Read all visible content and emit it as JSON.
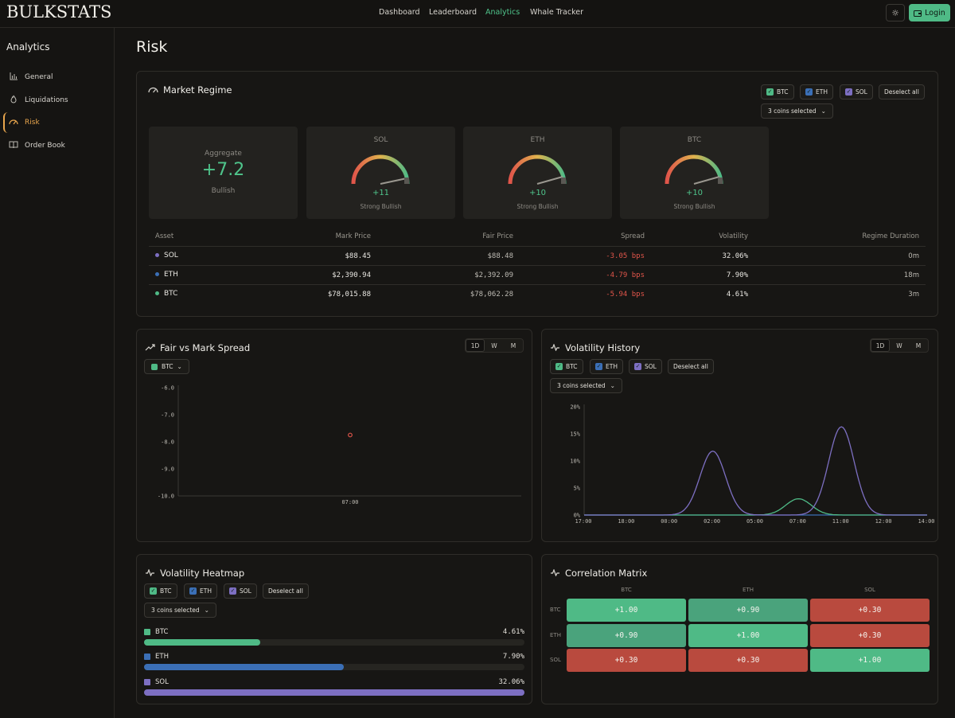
{
  "app": {
    "logo": "BULKSTATS"
  },
  "nav": {
    "items": [
      "Dashboard",
      "Leaderboard",
      "Analytics",
      "Whale Tracker"
    ],
    "active": "Analytics",
    "login_label": "Login"
  },
  "sidebar": {
    "title": "Analytics",
    "items": [
      {
        "label": "General",
        "icon": "bar-chart-icon"
      },
      {
        "label": "Liquidations",
        "icon": "flame-icon"
      },
      {
        "label": "Risk",
        "icon": "gauge-icon"
      },
      {
        "label": "Order Book",
        "icon": "book-icon"
      }
    ],
    "active": "Risk"
  },
  "page": {
    "title": "Risk"
  },
  "colors": {
    "btc": "#4fba86",
    "eth": "#3b6fb6",
    "sol": "#7d6fc2",
    "positive": "#4fc48b",
    "negative": "#e0554a",
    "accent": "#e9a64d"
  },
  "market_regime": {
    "title": "Market Regime",
    "chips": [
      "BTC",
      "ETH",
      "SOL"
    ],
    "deselect_label": "Deselect all",
    "selected_label": "3 coins selected",
    "aggregate": {
      "label": "Aggregate",
      "value": "+7.2",
      "status": "Bullish"
    },
    "gauges": [
      {
        "name": "SOL",
        "value": "+11",
        "status": "Strong Bullish",
        "score": 11
      },
      {
        "name": "ETH",
        "value": "+10",
        "status": "Strong Bullish",
        "score": 10
      },
      {
        "name": "BTC",
        "value": "+10",
        "status": "Strong Bullish",
        "score": 10
      }
    ],
    "table": {
      "headers": [
        "Asset",
        "Mark Price",
        "Fair Price",
        "Spread",
        "Volatility",
        "Regime Duration"
      ],
      "rows": [
        {
          "asset": "SOL",
          "mark": "$88.45",
          "fair": "$88.48",
          "spread": "-3.05 bps",
          "vol": "32.06%",
          "duration": "0m"
        },
        {
          "asset": "ETH",
          "mark": "$2,390.94",
          "fair": "$2,392.09",
          "spread": "-4.79 bps",
          "vol": "7.90%",
          "duration": "18m"
        },
        {
          "asset": "BTC",
          "mark": "$78,015.88",
          "fair": "$78,062.28",
          "spread": "-5.94 bps",
          "vol": "4.61%",
          "duration": "3m"
        }
      ]
    }
  },
  "fair_vs_mark": {
    "title": "Fair vs Mark Spread",
    "tabs": [
      "1D",
      "W",
      "M"
    ],
    "active_tab": "1D",
    "coin_select": "BTC"
  },
  "volatility_history": {
    "title": "Volatility History",
    "tabs": [
      "1D",
      "W",
      "M"
    ],
    "active_tab": "1D",
    "chips": [
      "BTC",
      "ETH",
      "SOL"
    ],
    "deselect_label": "Deselect all",
    "selected_label": "3 coins selected"
  },
  "volatility_heatmap": {
    "title": "Volatility Heatmap",
    "chips": [
      "BTC",
      "ETH",
      "SOL"
    ],
    "deselect_label": "Deselect all",
    "selected_label": "3 coins selected",
    "rows": [
      {
        "name": "BTC",
        "value": "4.61%",
        "fill": 0.306
      },
      {
        "name": "ETH",
        "value": "7.90%",
        "fill": 0.526
      },
      {
        "name": "SOL",
        "value": "32.06%",
        "fill": 1.0
      }
    ]
  },
  "correlation_matrix": {
    "title": "Correlation Matrix",
    "labels": [
      "BTC",
      "ETH",
      "SOL"
    ],
    "values": [
      [
        "+1.00",
        "+0.90",
        "+0.30"
      ],
      [
        "+0.90",
        "+1.00",
        "+0.30"
      ],
      [
        "+0.30",
        "+0.30",
        "+1.00"
      ]
    ]
  },
  "chart_data": [
    {
      "type": "scatter",
      "title": "Fair vs Mark Spread",
      "x_ticks": [
        "07:00"
      ],
      "y_ticks": [
        "-6.0",
        "-7.0",
        "-8.0",
        "-9.0",
        "-10.0"
      ],
      "ylim": [
        -10.0,
        -6.0
      ],
      "series": [
        {
          "name": "BTC",
          "points": [
            {
              "x": "07:00",
              "y": -7.75
            }
          ]
        }
      ]
    },
    {
      "type": "line",
      "title": "Volatility History",
      "x": [
        "17:00",
        "18:00",
        "00:00",
        "02:00",
        "05:00",
        "07:00",
        "11:00",
        "12:00",
        "14:00"
      ],
      "y_ticks": [
        "20%",
        "15%",
        "10%",
        "5%",
        "0%"
      ],
      "ylim": [
        0,
        20
      ],
      "series": [
        {
          "name": "BTC",
          "values": [
            0,
            0,
            0,
            0,
            0,
            3.0,
            0,
            0,
            0
          ]
        },
        {
          "name": "ETH",
          "values": [
            0,
            0,
            0,
            0,
            0,
            0,
            0,
            0,
            0
          ]
        },
        {
          "name": "SOL",
          "values": [
            0,
            0,
            0,
            11.8,
            0,
            0,
            16.3,
            0,
            0
          ]
        }
      ]
    }
  ]
}
